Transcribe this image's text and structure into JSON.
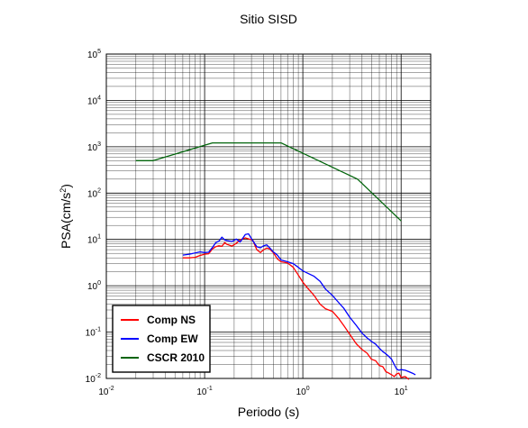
{
  "chart_data": {
    "type": "line",
    "title": "Sitio SISD",
    "xlabel": "Periodo (s)",
    "ylabel": {
      "base": "PSA(cm/s",
      "sup": "2",
      "tail": ")"
    },
    "x_scale": "log",
    "y_scale": "log",
    "xlim": [
      0.01,
      20
    ],
    "ylim": [
      0.01,
      100000
    ],
    "x_ticks": [
      {
        "value": 0.01,
        "base": "10",
        "exp": "-2"
      },
      {
        "value": 0.1,
        "base": "10",
        "exp": "-1"
      },
      {
        "value": 1,
        "base": "10",
        "exp": "0"
      },
      {
        "value": 10,
        "base": "10",
        "exp": "1"
      }
    ],
    "y_ticks": [
      {
        "value": 0.01,
        "base": "10",
        "exp": "-2"
      },
      {
        "value": 0.1,
        "base": "10",
        "exp": "-1"
      },
      {
        "value": 1,
        "base": "10",
        "exp": "0"
      },
      {
        "value": 10,
        "base": "10",
        "exp": "1"
      },
      {
        "value": 100,
        "base": "10",
        "exp": "2"
      },
      {
        "value": 1000,
        "base": "10",
        "exp": "3"
      },
      {
        "value": 10000,
        "base": "10",
        "exp": "4"
      },
      {
        "value": 100000,
        "base": "10",
        "exp": "5"
      }
    ],
    "grid": true,
    "legend_position": "bottom-left",
    "series": [
      {
        "name": "Comp NS",
        "color": "#ff0000",
        "x": [
          0.06,
          0.07,
          0.08,
          0.09,
          0.1,
          0.11,
          0.12,
          0.13,
          0.14,
          0.15,
          0.16,
          0.17,
          0.19,
          0.21,
          0.23,
          0.26,
          0.28,
          0.31,
          0.34,
          0.37,
          0.4,
          0.43,
          0.46,
          0.5,
          0.55,
          0.6,
          0.7,
          0.8,
          0.9,
          1.0,
          1.1,
          1.3,
          1.5,
          1.7,
          2.0,
          2.3,
          2.6,
          3.0,
          3.5,
          4.0,
          4.5,
          5.0,
          5.5,
          6.0,
          6.5,
          7.0,
          7.5,
          8.0,
          8.5,
          9.0,
          9.5,
          10.0,
          11.0,
          12.0
        ],
        "y": [
          4.0,
          4.0,
          4.1,
          4.5,
          4.8,
          4.9,
          6.2,
          7.0,
          7.3,
          7.1,
          8.5,
          7.8,
          7.2,
          8.2,
          9.8,
          10.8,
          10.3,
          9.6,
          6.0,
          5.2,
          6.0,
          6.5,
          6.2,
          5.2,
          3.8,
          3.3,
          3.1,
          2.5,
          1.7,
          1.2,
          0.93,
          0.62,
          0.4,
          0.32,
          0.28,
          0.2,
          0.14,
          0.09,
          0.056,
          0.042,
          0.035,
          0.026,
          0.024,
          0.019,
          0.018,
          0.014,
          0.013,
          0.012,
          0.011,
          0.0125,
          0.013,
          0.0105,
          0.011,
          0.0095
        ]
      },
      {
        "name": "Comp EW",
        "color": "#0000ff",
        "x": [
          0.06,
          0.07,
          0.08,
          0.09,
          0.1,
          0.11,
          0.12,
          0.13,
          0.14,
          0.15,
          0.16,
          0.17,
          0.19,
          0.21,
          0.23,
          0.26,
          0.28,
          0.31,
          0.34,
          0.37,
          0.4,
          0.43,
          0.46,
          0.5,
          0.55,
          0.6,
          0.7,
          0.8,
          0.9,
          1.0,
          1.1,
          1.3,
          1.5,
          1.7,
          2.0,
          2.3,
          2.6,
          3.0,
          3.5,
          4.0,
          4.5,
          5.0,
          5.5,
          6.0,
          6.5,
          7.0,
          7.5,
          8.0,
          8.5,
          9.0,
          9.5,
          10.0,
          11.0,
          12.0,
          13.0,
          14.0
        ],
        "y": [
          4.6,
          4.8,
          5.1,
          5.4,
          5.2,
          5.3,
          6.7,
          8.5,
          9.2,
          11.2,
          9.8,
          9.4,
          9.0,
          10.2,
          8.8,
          12.8,
          13.2,
          9.3,
          7.0,
          6.6,
          7.3,
          7.6,
          6.6,
          5.4,
          4.6,
          3.6,
          3.3,
          3.0,
          2.5,
          2.1,
          1.9,
          1.6,
          1.25,
          0.85,
          0.62,
          0.44,
          0.33,
          0.21,
          0.14,
          0.095,
          0.075,
          0.063,
          0.055,
          0.045,
          0.038,
          0.034,
          0.03,
          0.026,
          0.02,
          0.016,
          0.015,
          0.0155,
          0.015,
          0.014,
          0.013,
          0.012
        ]
      },
      {
        "name": "CSCR 2010",
        "color": "#00640a",
        "x": [
          0.02,
          0.03,
          0.12,
          0.6,
          3.6,
          10.0
        ],
        "y": [
          500,
          500,
          1210,
          1210,
          200,
          25
        ]
      }
    ]
  }
}
